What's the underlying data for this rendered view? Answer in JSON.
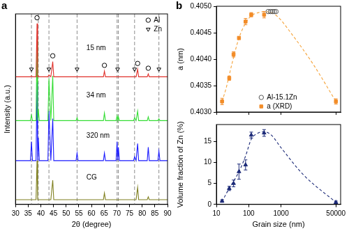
{
  "chart_data": [
    {
      "type": "line",
      "title": "a",
      "x_label": "2θ (degree)",
      "y_label": "Intensity (a.u.)",
      "x": [
        30,
        35.9,
        36.3,
        36.7,
        38.1,
        38.5,
        38.75,
        39.0,
        39.4,
        42.8,
        43.2,
        43.95,
        44.7,
        45.1,
        53.9,
        54.3,
        54.7,
        64.7,
        65.1,
        65.5,
        69.7,
        70.1,
        70.35,
        70.6,
        71.0,
        76.6,
        77.0,
        77.6,
        78.2,
        78.6,
        82.0,
        82.4,
        82.8,
        86.2,
        86.6,
        87.0,
        90
      ],
      "xlim": [
        30,
        90
      ],
      "xticks": [
        30,
        35,
        40,
        45,
        50,
        55,
        60,
        65,
        70,
        75,
        80,
        85,
        90
      ],
      "ylim": [
        0,
        100
      ],
      "tick_labels": "x",
      "grid": false,
      "legend": "top-right",
      "series": [
        {
          "color": "#e0302a",
          "values": [
            67,
            67,
            67.5,
            67,
            67,
            95,
            67,
            67.5,
            67,
            67,
            68,
            67,
            75,
            67,
            67,
            67,
            67,
            67,
            70,
            67,
            67,
            67,
            67,
            67,
            67,
            67,
            67,
            67,
            71,
            67,
            67,
            68.5,
            67,
            67,
            67,
            67,
            67
          ]
        },
        {
          "color": "#33dd33",
          "values": [
            44,
            44,
            47,
            44,
            44,
            86,
            44,
            50,
            44,
            44,
            66,
            44,
            67.5,
            44,
            44,
            45.5,
            44,
            44,
            48,
            44,
            44,
            46.5,
            44,
            46,
            44,
            44,
            45.5,
            44,
            49,
            44,
            44,
            46,
            44,
            44,
            45,
            44,
            44
          ]
        },
        {
          "color": "#1a1aff",
          "values": [
            23,
            23,
            33,
            23,
            23,
            64,
            23,
            35,
            23,
            23,
            49,
            23,
            45,
            23,
            23,
            27,
            23,
            23,
            27,
            23,
            23,
            33,
            23,
            30,
            23,
            23,
            25,
            23,
            32,
            23,
            23,
            30,
            23,
            23,
            28,
            23,
            23
          ]
        },
        {
          "color": "#808020",
          "values": [
            2.5,
            2.5,
            2.5,
            2.5,
            2.5,
            23,
            2.5,
            2.5,
            2.5,
            2.5,
            2.5,
            2.5,
            12.7,
            2.5,
            2.5,
            2.5,
            2.5,
            2.5,
            6,
            2.5,
            2.5,
            2.5,
            2.5,
            2.5,
            2.5,
            2.5,
            2.5,
            2.5,
            9,
            2.5,
            2.5,
            4,
            2.5,
            2.5,
            2.5,
            2.5,
            2.5
          ]
        },
        {
          "name": "Al",
          "type": "scatter",
          "marker": "open-circle",
          "color": "#000000",
          "x": [
            38.5,
            44.7,
            65.1,
            78.2,
            82.4
          ],
          "values": [
            98,
            78,
            73,
            74,
            71.5
          ]
        },
        {
          "name": "Zn",
          "type": "scatter",
          "marker": "open-triangle-down",
          "color": "#000000",
          "x": [
            36.3,
            43.2,
            54.3,
            70.3,
            77.0,
            86.6
          ],
          "values": [
            71,
            71,
            71,
            71,
            71,
            71
          ]
        }
      ],
      "vlines": [
        36.3,
        39.0,
        43.2,
        54.3,
        70.1,
        70.6,
        77.0,
        86.6
      ],
      "annotations": [
        {
          "text": "15 nm",
          "x": 58,
          "y": 82
        },
        {
          "text": "34 nm",
          "x": 58,
          "y": 57
        },
        {
          "text": "320 nm",
          "x": 58,
          "y": 36
        },
        {
          "text": "CG",
          "x": 58,
          "y": 14
        }
      ]
    },
    {
      "type": "scatter",
      "title": "b",
      "y_label": "a (nm)",
      "log": "x",
      "xlim": [
        10,
        70000
      ],
      "xticks": [
        10,
        100,
        1000,
        50000
      ],
      "ylim": [
        0.403,
        0.405
      ],
      "yticks": [
        {
          "value": 0.403,
          "label": "0.4030"
        },
        0.4035,
        {
          "value": 0.404,
          "label": "0.4040"
        },
        0.4045,
        {
          "value": 0.405,
          "label": "0.4050"
        }
      ],
      "tick_labels": "y",
      "grid": false,
      "legend": "bottom",
      "series": [
        {
          "name": "Al-15.1Zn",
          "marker": "open-circle",
          "color": "#555555",
          "x": [
            400,
            470,
            540,
            620,
            700
          ],
          "values": [
            0.4049,
            0.4049,
            0.4049,
            0.4049,
            0.4049
          ]
        },
        {
          "name": "a (XRD)",
          "marker": "square",
          "color": "#f28c28",
          "x": [
            15,
            25,
            34,
            50,
            80,
            120,
            300,
            50000
          ],
          "values": [
            0.4032,
            0.40364,
            0.40409,
            0.4044,
            0.40471,
            0.40484,
            0.40484,
            0.4032
          ],
          "errors": [
            6e-05,
            4e-05,
            5e-05,
            3e-05,
            6e-05,
            4e-05,
            6e-05,
            5e-05
          ]
        },
        {
          "type": "line",
          "line_style": "dashed",
          "color": "#f5a33a",
          "x": [
            15,
            20,
            30,
            50,
            80,
            120,
            200,
            300,
            500,
            800,
            2000,
            10000,
            50000
          ],
          "values": [
            0.4032,
            0.40345,
            0.4039,
            0.4044,
            0.40468,
            0.40482,
            0.40488,
            0.4049,
            0.40488,
            0.4048,
            0.4045,
            0.4039,
            0.4032
          ]
        }
      ]
    },
    {
      "type": "scatter",
      "x_label": "Grain size (nm)",
      "y_label": "Volume fraction of Zn (%)",
      "log": "x",
      "xlim": [
        10,
        70000
      ],
      "xticks": [
        10,
        100,
        1000,
        50000
      ],
      "ylim": [
        0,
        19
      ],
      "yticks": [
        0,
        5,
        10,
        15
      ],
      "grid": false,
      "series": [
        {
          "marker": "triangle",
          "color": "#1c2a78",
          "x": [
            15,
            25,
            34,
            50,
            80,
            120,
            300,
            50000
          ],
          "values": [
            0.8,
            3.8,
            5.0,
            7.8,
            9.4,
            16.5,
            17.0,
            0.5
          ],
          "errors": [
            0.3,
            0.5,
            0.8,
            1.8,
            1.2,
            0.7,
            0.8,
            0.3
          ]
        },
        {
          "type": "line",
          "line_style": "dashed",
          "color": "#1c2a78",
          "x": [
            15,
            20,
            30,
            50,
            80,
            120,
            200,
            300,
            500,
            1000,
            5000,
            50000
          ],
          "values": [
            0.6,
            2.5,
            4.8,
            7.8,
            11.5,
            15.5,
            17,
            17.3,
            16.5,
            13.5,
            7,
            0.5
          ]
        }
      ]
    }
  ]
}
